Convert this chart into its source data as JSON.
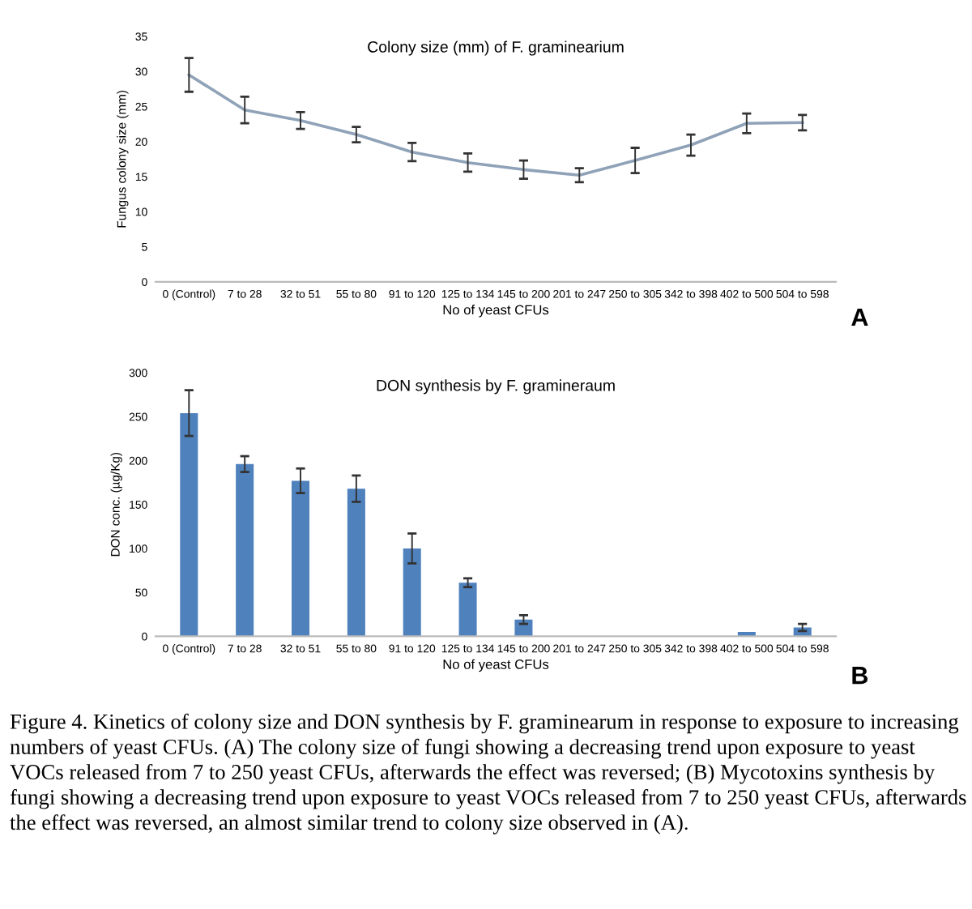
{
  "chart_data": [
    {
      "type": "line",
      "title": "Colony size (mm) of F. graminearium",
      "xlabel": "No of yeast CFUs",
      "ylabel": "Fungus colony size (mm)",
      "categories": [
        "0 (Control)",
        "7 to 28",
        "32 to 51",
        "55 to 80",
        "91 to 120",
        "125 to 134",
        "145 to 200",
        "201 to 247",
        "250 to 305",
        "342 to 398",
        "402 to 500",
        "504 to 598"
      ],
      "series": [
        {
          "color": "#8fa2b8",
          "values": [
            29.5,
            24.5,
            23,
            21,
            18.5,
            17,
            16,
            15.2,
            17.3,
            19.5,
            22.6,
            22.7
          ],
          "errors": [
            2.4,
            1.9,
            1.2,
            1.1,
            1.3,
            1.3,
            1.3,
            1.0,
            1.8,
            1.5,
            1.4,
            1.1
          ]
        }
      ],
      "ylim": [
        0,
        35
      ],
      "yticks": [
        0,
        5,
        10,
        15,
        20,
        25,
        30,
        35
      ],
      "grid": false,
      "legend": false,
      "marker": "none",
      "line_style": "solid",
      "annotations": [
        "A"
      ]
    },
    {
      "type": "bar",
      "title": "DON synthesis by F. gramineraum",
      "xlabel": "No of yeast CFUs",
      "ylabel": "DON conc. (µg/Kg)",
      "categories": [
        "0 (Control)",
        "7 to 28",
        "32 to 51",
        "55 to 80",
        "91 to 120",
        "125 to 134",
        "145 to 200",
        "201 to 247",
        "250 to 305",
        "342 to 398",
        "402 to 500",
        "504 to 598"
      ],
      "series": [
        {
          "color": "#4f81bd",
          "values": [
            254,
            196,
            177,
            168,
            100,
            61,
            19,
            0,
            0,
            0,
            5,
            10
          ],
          "errors": [
            26,
            9,
            14,
            15,
            17,
            5,
            5,
            null,
            null,
            null,
            null,
            4
          ]
        }
      ],
      "ylim": [
        0,
        300
      ],
      "yticks": [
        0,
        50,
        100,
        150,
        200,
        250,
        300
      ],
      "grid": false,
      "legend": false,
      "annotations": [
        "B",
        "Figure 4. Kinetics of colony size and DON synthesis by F. graminearum in response to exposure to increasing numbers of yeast CFUs. (A) The colony size of fungi showing a decreasing trend upon exposure to yeast VOCs released from 7 to 250 yeast CFUs, afterwards the effect was reversed; (B) Mycotoxins synthesis by fungi showing a decreasing trend upon exposure to yeast VOCs released from 7 to 250 yeast CFUs, afterwards the effect was reversed, an almost similar trend to colony size observed in (A)."
      ]
    }
  ]
}
